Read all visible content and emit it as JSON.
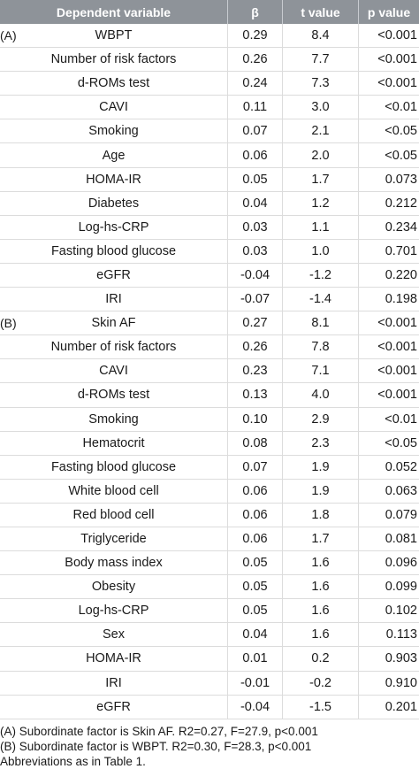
{
  "header": {
    "variable": "Dependent variable",
    "beta": "β",
    "t": "t value",
    "p": "p value"
  },
  "rows": [
    {
      "group": "(A)",
      "var": "WBPT",
      "beta": "0.29",
      "t": "8.4",
      "p": "<0.001"
    },
    {
      "group": "",
      "var": "Number of risk factors",
      "beta": "0.26",
      "t": "7.7",
      "p": "<0.001"
    },
    {
      "group": "",
      "var": "d-ROMs test",
      "beta": "0.24",
      "t": "7.3",
      "p": "<0.001"
    },
    {
      "group": "",
      "var": "CAVI",
      "beta": "0.11",
      "t": "3.0",
      "p": "<0.01"
    },
    {
      "group": "",
      "var": "Smoking",
      "beta": "0.07",
      "t": "2.1",
      "p": "<0.05"
    },
    {
      "group": "",
      "var": "Age",
      "beta": "0.06",
      "t": "2.0",
      "p": "<0.05"
    },
    {
      "group": "",
      "var": "HOMA-IR",
      "beta": "0.05",
      "t": "1.7",
      "p": "0.073"
    },
    {
      "group": "",
      "var": "Diabetes",
      "beta": "0.04",
      "t": "1.2",
      "p": "0.212"
    },
    {
      "group": "",
      "var": "Log-hs-CRP",
      "beta": "0.03",
      "t": "1.1",
      "p": "0.234"
    },
    {
      "group": "",
      "var": "Fasting blood glucose",
      "beta": "0.03",
      "t": "1.0",
      "p": "0.701"
    },
    {
      "group": "",
      "var": "eGFR",
      "beta": "-0.04",
      "t": "-1.2",
      "p": "0.220"
    },
    {
      "group": "",
      "var": "IRI",
      "beta": "-0.07",
      "t": "-1.4",
      "p": "0.198"
    },
    {
      "group": "(B)",
      "var": "Skin AF",
      "beta": "0.27",
      "t": "8.1",
      "p": "<0.001"
    },
    {
      "group": "",
      "var": "Number of risk factors",
      "beta": "0.26",
      "t": "7.8",
      "p": "<0.001"
    },
    {
      "group": "",
      "var": "CAVI",
      "beta": "0.23",
      "t": "7.1",
      "p": "<0.001"
    },
    {
      "group": "",
      "var": "d-ROMs test",
      "beta": "0.13",
      "t": "4.0",
      "p": "<0.001"
    },
    {
      "group": "",
      "var": "Smoking",
      "beta": "0.10",
      "t": "2.9",
      "p": "<0.01"
    },
    {
      "group": "",
      "var": "Hematocrit",
      "beta": "0.08",
      "t": "2.3",
      "p": "<0.05"
    },
    {
      "group": "",
      "var": "Fasting blood glucose",
      "beta": "0.07",
      "t": "1.9",
      "p": "0.052"
    },
    {
      "group": "",
      "var": "White blood cell",
      "beta": "0.06",
      "t": "1.9",
      "p": "0.063"
    },
    {
      "group": "",
      "var": "Red blood cell",
      "beta": "0.06",
      "t": "1.8",
      "p": "0.079"
    },
    {
      "group": "",
      "var": "Triglyceride",
      "beta": "0.06",
      "t": "1.7",
      "p": "0.081"
    },
    {
      "group": "",
      "var": "Body mass index",
      "beta": "0.05",
      "t": "1.6",
      "p": "0.096"
    },
    {
      "group": "",
      "var": "Obesity",
      "beta": "0.05",
      "t": "1.6",
      "p": "0.099"
    },
    {
      "group": "",
      "var": "Log-hs-CRP",
      "beta": "0.05",
      "t": "1.6",
      "p": "0.102"
    },
    {
      "group": "",
      "var": "Sex",
      "beta": "0.04",
      "t": "1.6",
      "p": "0.113"
    },
    {
      "group": "",
      "var": "HOMA-IR",
      "beta": "0.01",
      "t": "0.2",
      "p": "0.903"
    },
    {
      "group": "",
      "var": "IRI",
      "beta": "-0.01",
      "t": "-0.2",
      "p": "0.910"
    },
    {
      "group": "",
      "var": "eGFR",
      "beta": "-0.04",
      "t": "-1.5",
      "p": "0.201"
    }
  ],
  "notes": [
    "(A) Subordinate factor is Skin AF. R2=0.27, F=27.9, p<0.001",
    "(B) Subordinate factor is WBPT. R2=0.30, F=28.3, p<0.001",
    "Abbreviations as in Table 1."
  ],
  "colors": {
    "header_bg": "#8e9399",
    "header_text": "#ffffff",
    "grid": "#dcdcdc"
  }
}
